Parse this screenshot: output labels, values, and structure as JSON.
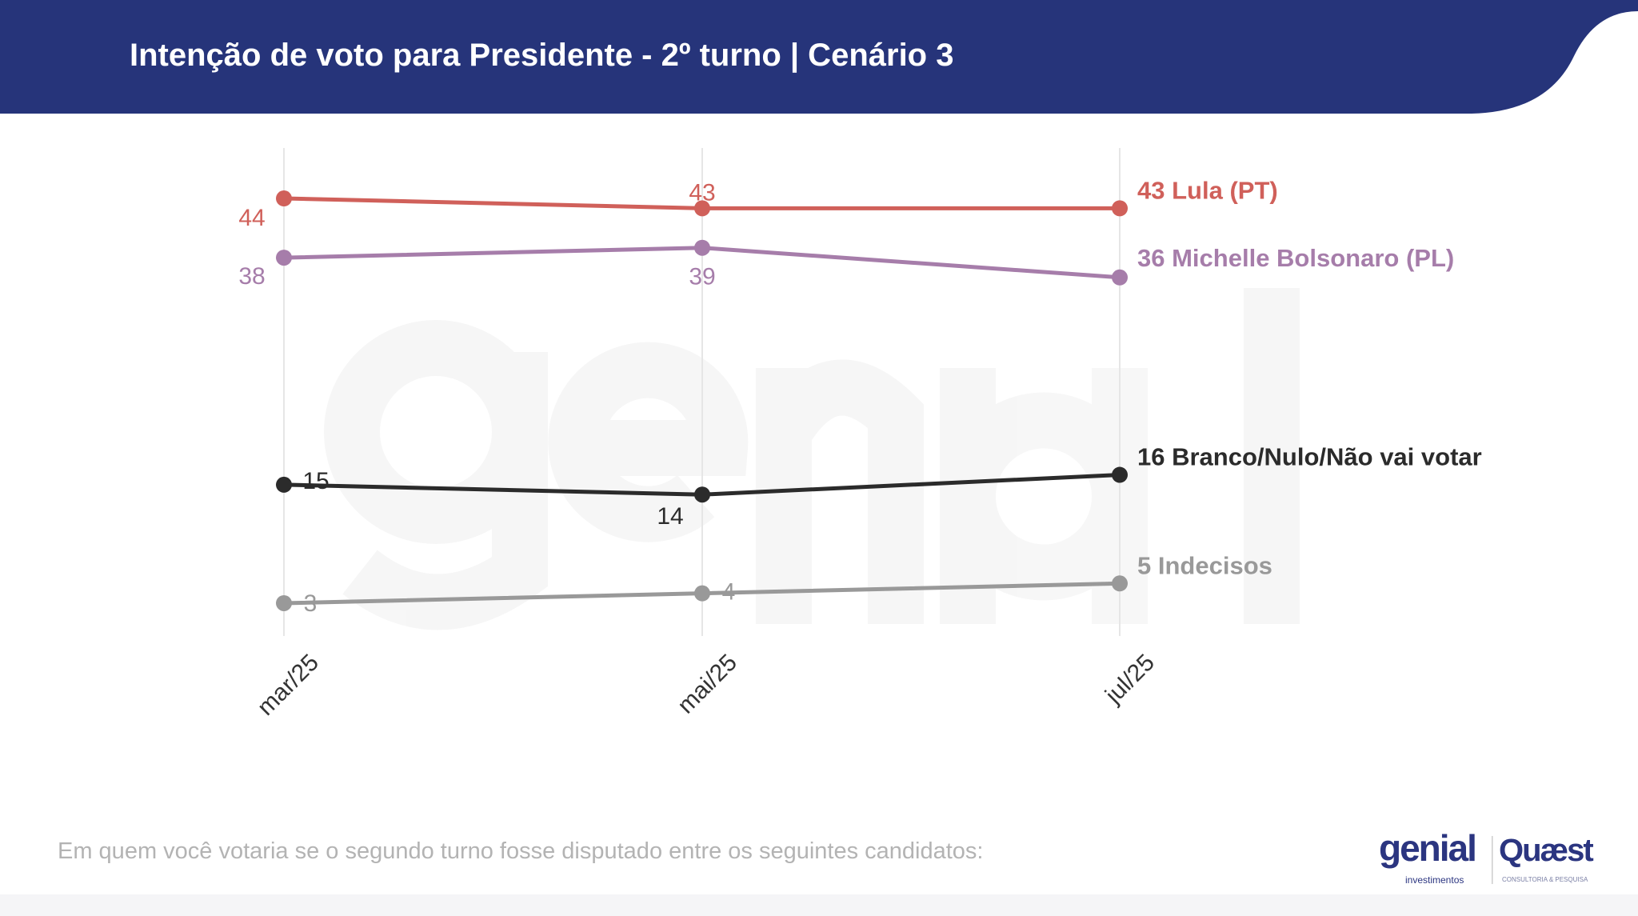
{
  "header": {
    "title": "Intenção de voto para Presidente - 2º turno | Cenário 3",
    "bg_color": "#26347a"
  },
  "footer": {
    "question": "Em quem você votaria se o segundo turno fosse disputado entre os seguintes candidatos:",
    "logos": [
      "genial investimentos",
      "Quaest consultoria & pesquisa"
    ]
  },
  "watermark": "genial investimentos",
  "chart_data": {
    "type": "line",
    "categories": [
      "mar/25",
      "mai/25",
      "jul/25"
    ],
    "ylim": [
      0,
      47
    ],
    "grid": "vertical",
    "legend": "end-of-line labels",
    "series": [
      {
        "name": "Lula (PT)",
        "values": [
          44,
          43,
          43
        ],
        "color": "#d0605a"
      },
      {
        "name": "Michelle Bolsonaro (PL)",
        "values": [
          38,
          39,
          36
        ],
        "color": "#a67daa"
      },
      {
        "name": "Branco/Nulo/Não vai votar",
        "values": [
          15,
          14,
          16
        ],
        "color": "#2b2b2b"
      },
      {
        "name": "Indecisos",
        "values": [
          3,
          4,
          5
        ],
        "color": "#999999"
      }
    ]
  }
}
